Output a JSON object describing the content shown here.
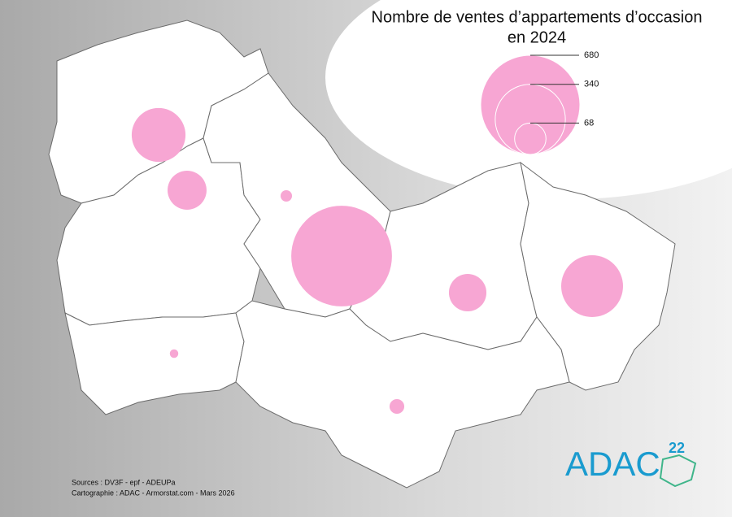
{
  "title": [
    "Nombre de ventes d’appartements d’occasion",
    "en 2024"
  ],
  "legend": {
    "values": [
      680,
      340,
      68
    ]
  },
  "circles": {
    "values": [
      200,
      105,
      9,
      700,
      97,
      264,
      5,
      15
    ]
  },
  "sources": [
    "Sources : DV3F - epf - ADEUPa",
    "Cartographie : ADAC - Armorstat.com - Mars 2026"
  ],
  "logo": {
    "text": "ADAC",
    "number": "22"
  }
}
